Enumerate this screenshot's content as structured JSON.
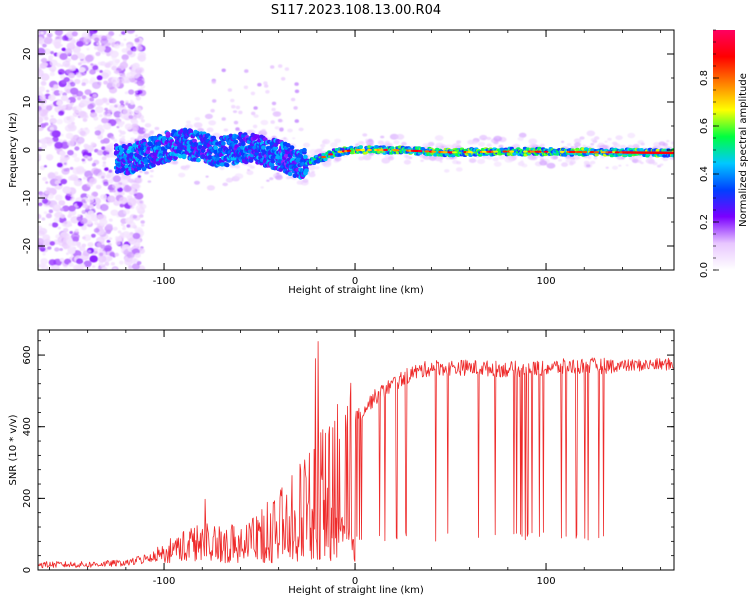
{
  "figure": {
    "title": "S117.2023.108.13.00.R04"
  },
  "chart_data": [
    {
      "type": "heatmap",
      "xlabel": "Height of straight line (km)",
      "ylabel": "Frequency (Hz)",
      "xlim": [
        -166,
        167
      ],
      "ylim": [
        -25,
        25
      ],
      "x_ticks": [
        -100,
        0,
        100
      ],
      "y_ticks": [
        -20,
        -10,
        0,
        10,
        20
      ],
      "colorbar": {
        "label": "Normalized spectral amplitude",
        "range": [
          0,
          1
        ],
        "ticks": [
          0.0,
          0.2,
          0.4,
          0.6,
          0.8
        ],
        "colors": [
          "#ffffff",
          "#e8c6ff",
          "#7a00ff",
          "#0040ff",
          "#00c8ff",
          "#00ff40",
          "#ffff00",
          "#ff8000",
          "#ff0000",
          "#ff0060"
        ]
      },
      "track": [
        [
          -120,
          -2
        ],
        [
          -110,
          -1
        ],
        [
          -100,
          0.5
        ],
        [
          -90,
          1.5
        ],
        [
          -80,
          0.5
        ],
        [
          -70,
          -0.5
        ],
        [
          -60,
          0.5
        ],
        [
          -50,
          0
        ],
        [
          -40,
          -1
        ],
        [
          -30,
          -3
        ],
        [
          -20,
          -2
        ],
        [
          -10,
          -0.5
        ],
        [
          0,
          0
        ],
        [
          20,
          0
        ],
        [
          50,
          -0.5
        ],
        [
          80,
          -0.3
        ],
        [
          110,
          -0.4
        ],
        [
          140,
          -0.5
        ],
        [
          167,
          -0.6
        ]
      ]
    },
    {
      "type": "line",
      "xlabel": "Height of straight line (km)",
      "ylabel": "SNR (10 * v/v)",
      "xlim": [
        -166,
        167
      ],
      "ylim": [
        0,
        670
      ],
      "x_ticks": [
        -100,
        0,
        100
      ],
      "y_ticks": [
        0,
        200,
        400,
        600
      ],
      "series": [
        {
          "color": "#ee2a2a",
          "x": [
            -166,
            -140,
            -120,
            -110,
            -100,
            -90,
            -80,
            -70,
            -60,
            -50,
            -40,
            -30,
            -25,
            -20,
            -15,
            -10,
            0,
            10,
            20,
            30,
            40,
            60,
            80,
            100,
            120,
            140,
            167
          ],
          "y": [
            15,
            15,
            20,
            35,
            60,
            90,
            100,
            100,
            110,
            130,
            170,
            230,
            280,
            300,
            330,
            360,
            420,
            480,
            520,
            550,
            565,
            565,
            560,
            565,
            570,
            570,
            575
          ]
        }
      ]
    }
  ]
}
